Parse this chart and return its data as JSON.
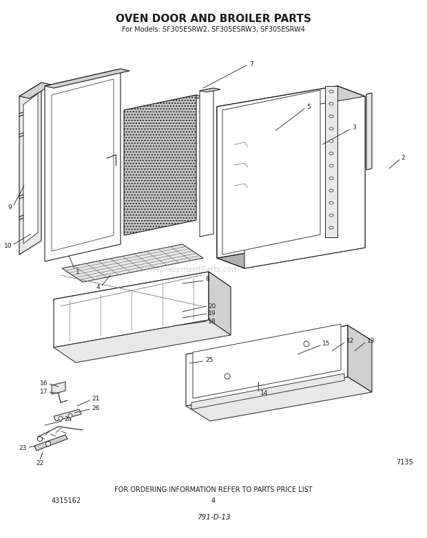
{
  "title": "OVEN DOOR AND BROILER PARTS",
  "subtitle": "For Models: SF305ESRW2, SF305ESRW3, SF305ESRW4",
  "footer_text": "FOR ORDERING INFORMATION REFER TO PARTS PRICE LIST",
  "page_number": "4",
  "part_number_left": "4315162",
  "part_number_right": "7135",
  "doc_number": "791-D-13",
  "watermark": "eReplacementParts.com",
  "bg_color": "#ffffff",
  "line_color": "#1a1a1a",
  "fig_width": 6.2,
  "fig_height": 7.82,
  "dpi": 100
}
